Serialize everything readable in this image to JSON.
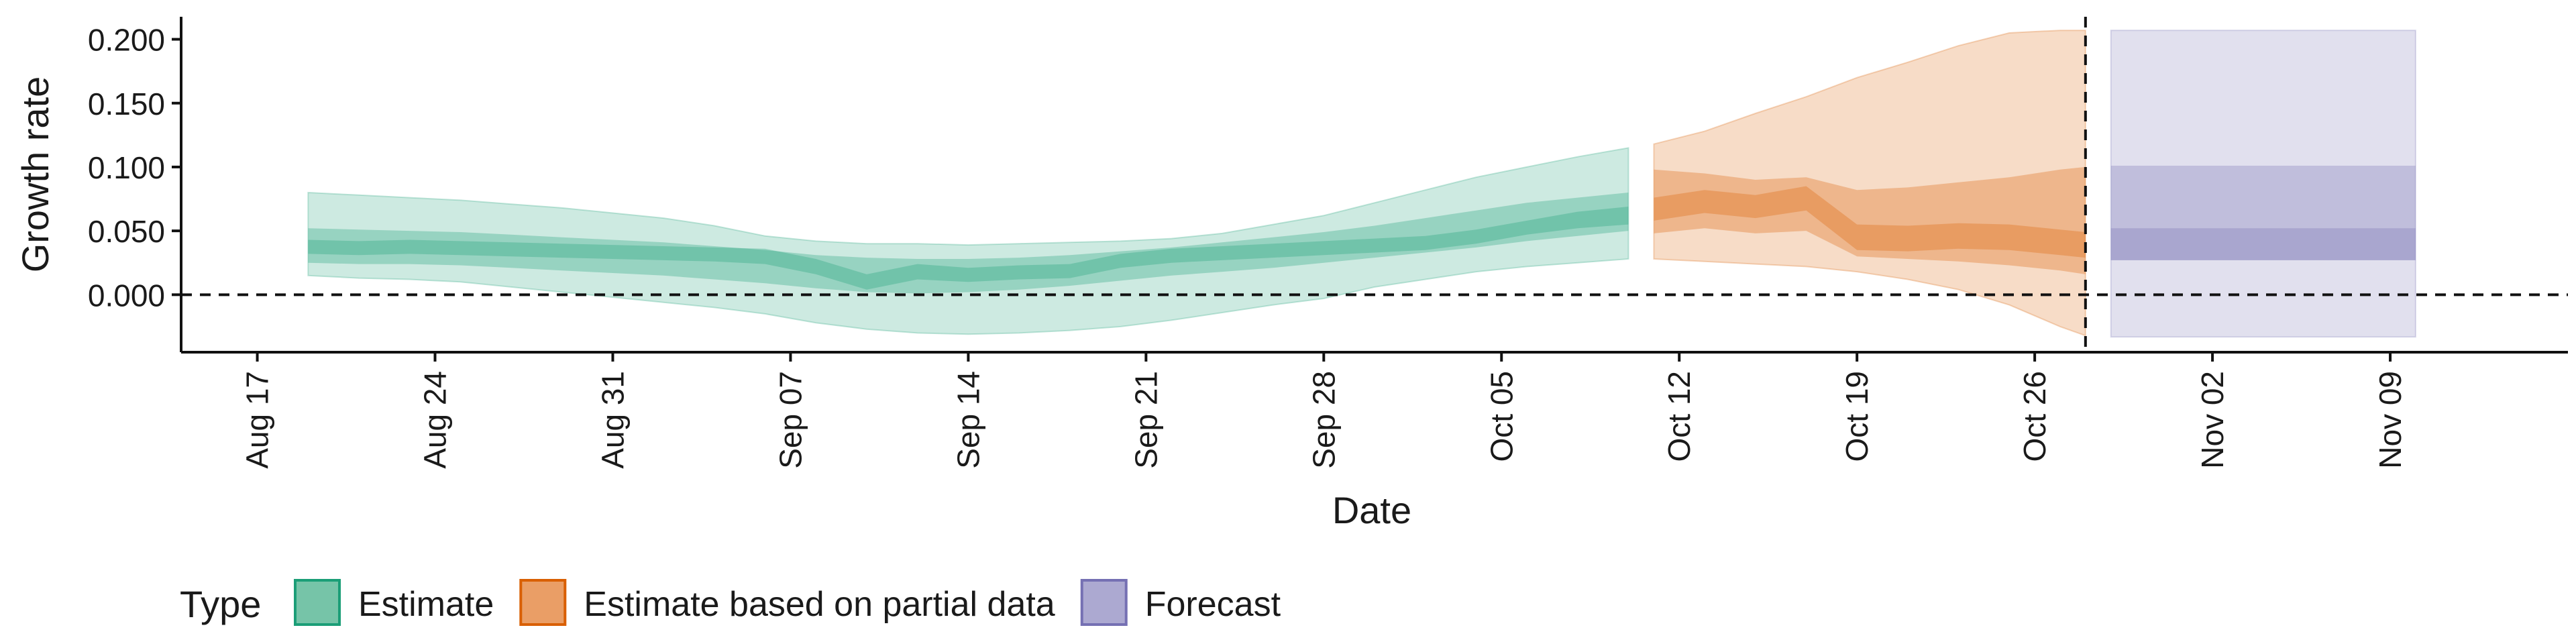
{
  "chart_data": {
    "type": "area",
    "title": "",
    "xlabel": "Date",
    "ylabel": "Growth rate",
    "x_axis": {
      "type": "date",
      "range": [
        "2020-08-14",
        "2020-11-16"
      ],
      "ticks": [
        "2020-08-17",
        "2020-08-24",
        "2020-08-31",
        "2020-09-07",
        "2020-09-14",
        "2020-09-21",
        "2020-09-28",
        "2020-10-05",
        "2020-10-12",
        "2020-10-19",
        "2020-10-26",
        "2020-11-02",
        "2020-11-09"
      ],
      "tick_labels": [
        "Aug 17",
        "Aug 24",
        "Aug 31",
        "Sep 07",
        "Sep 14",
        "Sep 21",
        "Sep 28",
        "Oct 05",
        "Oct 12",
        "Oct 19",
        "Oct 26",
        "Nov 02",
        "Nov 09"
      ]
    },
    "y_axis": {
      "range": [
        -0.045,
        0.215
      ],
      "ticks": [
        0.0,
        0.05,
        0.1,
        0.15,
        0.2
      ],
      "tick_labels": [
        "0.000",
        "0.050",
        "0.100",
        "0.150",
        "0.200"
      ]
    },
    "grid": false,
    "reference_lines": [
      {
        "orientation": "horizontal",
        "value": 0.0,
        "style": "dashed"
      },
      {
        "orientation": "vertical",
        "value": "2020-10-28",
        "style": "dashed"
      }
    ],
    "legend": {
      "position": "bottom",
      "title": "Type",
      "entries": [
        {
          "label": "Estimate",
          "color": "#1b9e77"
        },
        {
          "label": "Estimate based on partial data",
          "color": "#d95f02"
        },
        {
          "label": "Forecast",
          "color": "#7570b3"
        }
      ]
    },
    "series": [
      {
        "name": "Estimate",
        "color": "#1b9e77",
        "x": [
          "2020-08-19",
          "2020-08-21",
          "2020-08-23",
          "2020-08-25",
          "2020-08-27",
          "2020-08-29",
          "2020-08-31",
          "2020-09-02",
          "2020-09-04",
          "2020-09-06",
          "2020-09-08",
          "2020-09-10",
          "2020-09-12",
          "2020-09-14",
          "2020-09-16",
          "2020-09-18",
          "2020-09-20",
          "2020-09-22",
          "2020-09-24",
          "2020-09-26",
          "2020-09-28",
          "2020-09-30",
          "2020-10-02",
          "2020-10-04",
          "2020-10-06",
          "2020-10-08",
          "2020-10-10"
        ],
        "median": [
          0.037,
          0.036,
          0.037,
          0.036,
          0.035,
          0.034,
          0.033,
          0.032,
          0.031,
          0.03,
          0.022,
          0.01,
          0.018,
          0.015,
          0.017,
          0.018,
          0.026,
          0.03,
          0.032,
          0.034,
          0.036,
          0.038,
          0.04,
          0.045,
          0.052,
          0.058,
          0.062
        ],
        "lower_90": [
          0.015,
          0.013,
          0.012,
          0.01,
          0.006,
          0.002,
          -0.002,
          -0.006,
          -0.01,
          -0.015,
          -0.022,
          -0.027,
          -0.03,
          -0.031,
          -0.03,
          -0.028,
          -0.025,
          -0.02,
          -0.014,
          -0.008,
          -0.003,
          0.006,
          0.012,
          0.018,
          0.022,
          0.025,
          0.028
        ],
        "upper_90": [
          0.08,
          0.078,
          0.076,
          0.074,
          0.071,
          0.068,
          0.064,
          0.06,
          0.054,
          0.046,
          0.042,
          0.04,
          0.04,
          0.039,
          0.04,
          0.041,
          0.042,
          0.044,
          0.048,
          0.055,
          0.062,
          0.072,
          0.082,
          0.092,
          0.1,
          0.108,
          0.115
        ],
        "lower_50": [
          0.025,
          0.024,
          0.024,
          0.023,
          0.021,
          0.019,
          0.017,
          0.015,
          0.012,
          0.009,
          0.005,
          0.002,
          0.001,
          0.002,
          0.004,
          0.007,
          0.011,
          0.015,
          0.018,
          0.021,
          0.025,
          0.029,
          0.033,
          0.037,
          0.042,
          0.046,
          0.05
        ],
        "upper_50": [
          0.052,
          0.051,
          0.05,
          0.049,
          0.047,
          0.045,
          0.043,
          0.041,
          0.038,
          0.035,
          0.031,
          0.029,
          0.028,
          0.028,
          0.029,
          0.031,
          0.034,
          0.037,
          0.041,
          0.045,
          0.049,
          0.054,
          0.06,
          0.066,
          0.072,
          0.076,
          0.08
        ],
        "lower_20": [
          0.032,
          0.031,
          0.032,
          0.031,
          0.03,
          0.029,
          0.028,
          0.027,
          0.026,
          0.024,
          0.016,
          0.004,
          0.012,
          0.01,
          0.012,
          0.013,
          0.021,
          0.025,
          0.027,
          0.029,
          0.031,
          0.033,
          0.035,
          0.04,
          0.047,
          0.052,
          0.055
        ],
        "upper_20": [
          0.043,
          0.042,
          0.043,
          0.042,
          0.041,
          0.04,
          0.039,
          0.038,
          0.037,
          0.036,
          0.028,
          0.016,
          0.024,
          0.021,
          0.023,
          0.024,
          0.032,
          0.036,
          0.038,
          0.04,
          0.042,
          0.044,
          0.046,
          0.051,
          0.058,
          0.065,
          0.069
        ]
      },
      {
        "name": "Estimate based on partial data",
        "color": "#d95f02",
        "x": [
          "2020-10-11",
          "2020-10-13",
          "2020-10-15",
          "2020-10-17",
          "2020-10-19",
          "2020-10-21",
          "2020-10-23",
          "2020-10-25",
          "2020-10-27",
          "2020-10-28"
        ],
        "median": [
          0.065,
          0.072,
          0.068,
          0.075,
          0.044,
          0.043,
          0.045,
          0.044,
          0.04,
          0.038
        ],
        "lower_90": [
          0.028,
          0.026,
          0.024,
          0.022,
          0.018,
          0.012,
          0.004,
          -0.008,
          -0.025,
          -0.032
        ],
        "upper_90": [
          0.118,
          0.128,
          0.142,
          0.155,
          0.17,
          0.182,
          0.195,
          0.205,
          0.207,
          0.207
        ],
        "lower_50": [
          0.048,
          0.052,
          0.048,
          0.05,
          0.03,
          0.028,
          0.026,
          0.023,
          0.019,
          0.016
        ],
        "upper_50": [
          0.098,
          0.095,
          0.09,
          0.092,
          0.082,
          0.084,
          0.088,
          0.092,
          0.098,
          0.1
        ],
        "lower_20": [
          0.058,
          0.064,
          0.06,
          0.066,
          0.035,
          0.034,
          0.036,
          0.035,
          0.031,
          0.029
        ],
        "upper_20": [
          0.076,
          0.082,
          0.078,
          0.085,
          0.055,
          0.054,
          0.056,
          0.055,
          0.051,
          0.049
        ]
      },
      {
        "name": "Forecast",
        "color": "#7570b3",
        "x": [
          "2020-10-29",
          "2020-11-10"
        ],
        "median": [
          0.04,
          0.04
        ],
        "lower_90": [
          -0.033,
          -0.033
        ],
        "upper_90": [
          0.207,
          0.207
        ],
        "lower_50": [
          0.027,
          0.027
        ],
        "upper_50": [
          0.101,
          0.101
        ],
        "lower_20": [
          0.027,
          0.027
        ],
        "upper_20": [
          0.052,
          0.052
        ]
      }
    ]
  }
}
